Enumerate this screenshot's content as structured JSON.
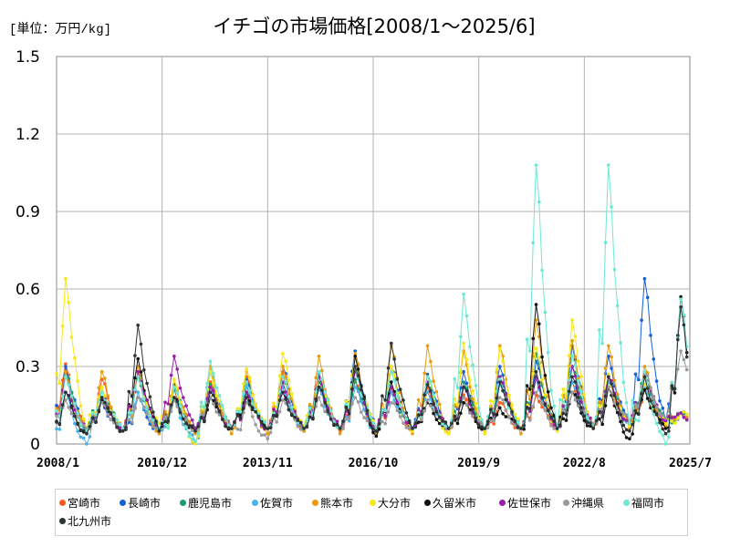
{
  "chart_data": {
    "type": "line",
    "title": "イチゴの市場価格[2008/1～2025/6]",
    "unit_label": "[単位：万円/kg]",
    "x_ticks": [
      "2008/1",
      "2010/12",
      "2013/11",
      "2016/10",
      "2019/9",
      "2022/8",
      "2025/7"
    ],
    "y_ticks": [
      "0",
      "0.3",
      "0.6",
      "0.9",
      "1.2",
      "1.5"
    ],
    "ylim": [
      0,
      1.5
    ],
    "grid": true,
    "legend_position": "bottom",
    "series": [
      {
        "name": "宮崎市",
        "color": "#ff5b1a",
        "peaks": [
          0.31,
          0.25,
          0.28,
          0.21,
          0.24,
          0.26,
          0.28,
          0.28,
          0.24,
          0.22,
          0.22,
          0.19,
          0.16,
          0.19,
          0.24,
          0.24,
          0.21,
          0.12
        ],
        "troughs": [
          0.06,
          0.06,
          0.06,
          0.05,
          0.06,
          0.06,
          0.05,
          0.05,
          0.06,
          0.06,
          0.06,
          0.06,
          0.06,
          0.06,
          0.07,
          0.08,
          0.09,
          0.08
        ]
      },
      {
        "name": "長崎市",
        "color": "#1560d8",
        "peaks": [
          0.3,
          0.16,
          0.18,
          0.23,
          0.28,
          0.25,
          0.3,
          0.27,
          0.36,
          0.3,
          0.27,
          0.28,
          0.3,
          0.32,
          0.38,
          0.34,
          0.64,
          0.12
        ],
        "troughs": [
          0.05,
          0.06,
          0.05,
          0.05,
          0.06,
          0.06,
          0.05,
          0.06,
          0.06,
          0.06,
          0.06,
          0.06,
          0.06,
          0.06,
          0.07,
          0.08,
          0.09,
          0.08
        ]
      },
      {
        "name": "鹿児島市",
        "color": "#179e6c",
        "peaks": [
          0.28,
          0.22,
          0.26,
          0.21,
          0.23,
          0.23,
          0.26,
          0.24,
          0.25,
          0.22,
          0.23,
          0.24,
          0.26,
          0.35,
          0.3,
          0.27,
          0.28,
          0.12
        ],
        "troughs": [
          0.05,
          0.06,
          0.06,
          0.05,
          0.06,
          0.06,
          0.06,
          0.06,
          0.06,
          0.06,
          0.06,
          0.06,
          0.06,
          0.07,
          0.07,
          0.08,
          0.09,
          0.08
        ]
      },
      {
        "name": "佐賀市",
        "color": "#4ab2ea",
        "peaks": [
          0.2,
          0.18,
          0.2,
          0.18,
          0.21,
          0.22,
          0.22,
          0.21,
          0.22,
          0.2,
          0.2,
          0.22,
          0.23,
          0.25,
          0.24,
          0.24,
          0.22,
          0.12
        ],
        "troughs": [
          0.0,
          0.06,
          0.05,
          0.01,
          0.06,
          0.06,
          0.06,
          0.06,
          0.05,
          0.06,
          0.06,
          0.06,
          0.06,
          0.06,
          0.07,
          0.08,
          0.09,
          0.08
        ]
      },
      {
        "name": "熊本市",
        "color": "#e89b10",
        "peaks": [
          0.28,
          0.28,
          0.3,
          0.25,
          0.3,
          0.28,
          0.3,
          0.34,
          0.35,
          0.38,
          0.38,
          0.36,
          0.38,
          0.48,
          0.4,
          0.38,
          0.3,
          0.12
        ],
        "troughs": [
          0.05,
          0.05,
          0.04,
          0.04,
          0.04,
          0.04,
          0.05,
          0.04,
          0.04,
          0.04,
          0.04,
          0.04,
          0.04,
          0.05,
          0.06,
          0.06,
          0.07,
          0.08
        ]
      },
      {
        "name": "大分市",
        "color": "#f6e816",
        "peaks": [
          0.64,
          0.22,
          0.27,
          0.25,
          0.28,
          0.29,
          0.35,
          0.26,
          0.34,
          0.3,
          0.26,
          0.39,
          0.37,
          0.37,
          0.48,
          0.27,
          0.23,
          0.12
        ],
        "troughs": [
          0.06,
          0.06,
          0.08,
          0.0,
          0.06,
          0.06,
          0.07,
          0.06,
          0.06,
          0.05,
          0.04,
          0.04,
          0.06,
          0.05,
          0.06,
          0.07,
          0.08,
          0.08
        ]
      },
      {
        "name": "久留米市",
        "color": "#111111",
        "peaks": [
          0.2,
          0.17,
          0.33,
          0.18,
          0.18,
          0.2,
          0.2,
          0.22,
          0.34,
          0.24,
          0.16,
          0.16,
          0.14,
          0.54,
          0.2,
          0.22,
          0.21,
          0.57
        ],
        "troughs": [
          0.04,
          0.05,
          0.05,
          0.05,
          0.06,
          0.06,
          0.06,
          0.06,
          0.03,
          0.06,
          0.06,
          0.06,
          0.06,
          0.06,
          0.06,
          0.02,
          0.06,
          0.04
        ]
      },
      {
        "name": "佐世保市",
        "color": "#9b1fa6",
        "peaks": [
          0.26,
          0.18,
          0.28,
          0.34,
          0.22,
          0.2,
          0.24,
          0.26,
          0.28,
          0.22,
          0.24,
          0.22,
          0.26,
          0.26,
          0.3,
          0.26,
          0.27,
          0.12
        ],
        "troughs": [
          0.05,
          0.06,
          0.06,
          0.06,
          0.06,
          0.06,
          0.06,
          0.06,
          0.06,
          0.06,
          0.06,
          0.06,
          0.06,
          0.06,
          0.07,
          0.08,
          0.09,
          0.08
        ]
      },
      {
        "name": "沖縄県",
        "color": "#9a9a9a",
        "peaks": [
          0.17,
          0.16,
          0.18,
          0.17,
          0.18,
          0.16,
          0.17,
          0.18,
          0.18,
          0.16,
          0.17,
          0.18,
          0.18,
          0.2,
          0.2,
          0.22,
          0.28,
          0.36
        ],
        "troughs": [
          0.06,
          0.06,
          0.06,
          0.05,
          0.07,
          0.02,
          0.06,
          0.06,
          0.06,
          0.06,
          0.06,
          0.06,
          0.06,
          0.06,
          0.08,
          0.09,
          0.1,
          0.16
        ]
      },
      {
        "name": "福岡市",
        "color": "#6ee8d2",
        "peaks": [
          0.26,
          0.2,
          0.26,
          0.22,
          0.32,
          0.24,
          0.26,
          0.28,
          0.3,
          0.28,
          0.26,
          0.58,
          0.25,
          1.08,
          0.34,
          1.08,
          0.28,
          0.56
        ],
        "troughs": [
          0.05,
          0.06,
          0.06,
          0.01,
          0.06,
          0.06,
          0.06,
          0.06,
          0.06,
          0.06,
          0.06,
          0.06,
          0.06,
          0.06,
          0.07,
          0.08,
          0.0,
          0.08
        ]
      },
      {
        "name": "北九州市",
        "color": "#2d3436",
        "peaks": [
          0.2,
          0.18,
          0.46,
          0.18,
          0.2,
          0.18,
          0.2,
          0.22,
          0.3,
          0.39,
          0.23,
          0.22,
          0.24,
          0.28,
          0.26,
          0.26,
          0.26,
          0.53
        ],
        "troughs": [
          0.04,
          0.05,
          0.05,
          0.05,
          0.06,
          0.06,
          0.06,
          0.06,
          0.05,
          0.06,
          0.06,
          0.06,
          0.06,
          0.06,
          0.06,
          0.05,
          0.04,
          0.07
        ]
      }
    ]
  }
}
